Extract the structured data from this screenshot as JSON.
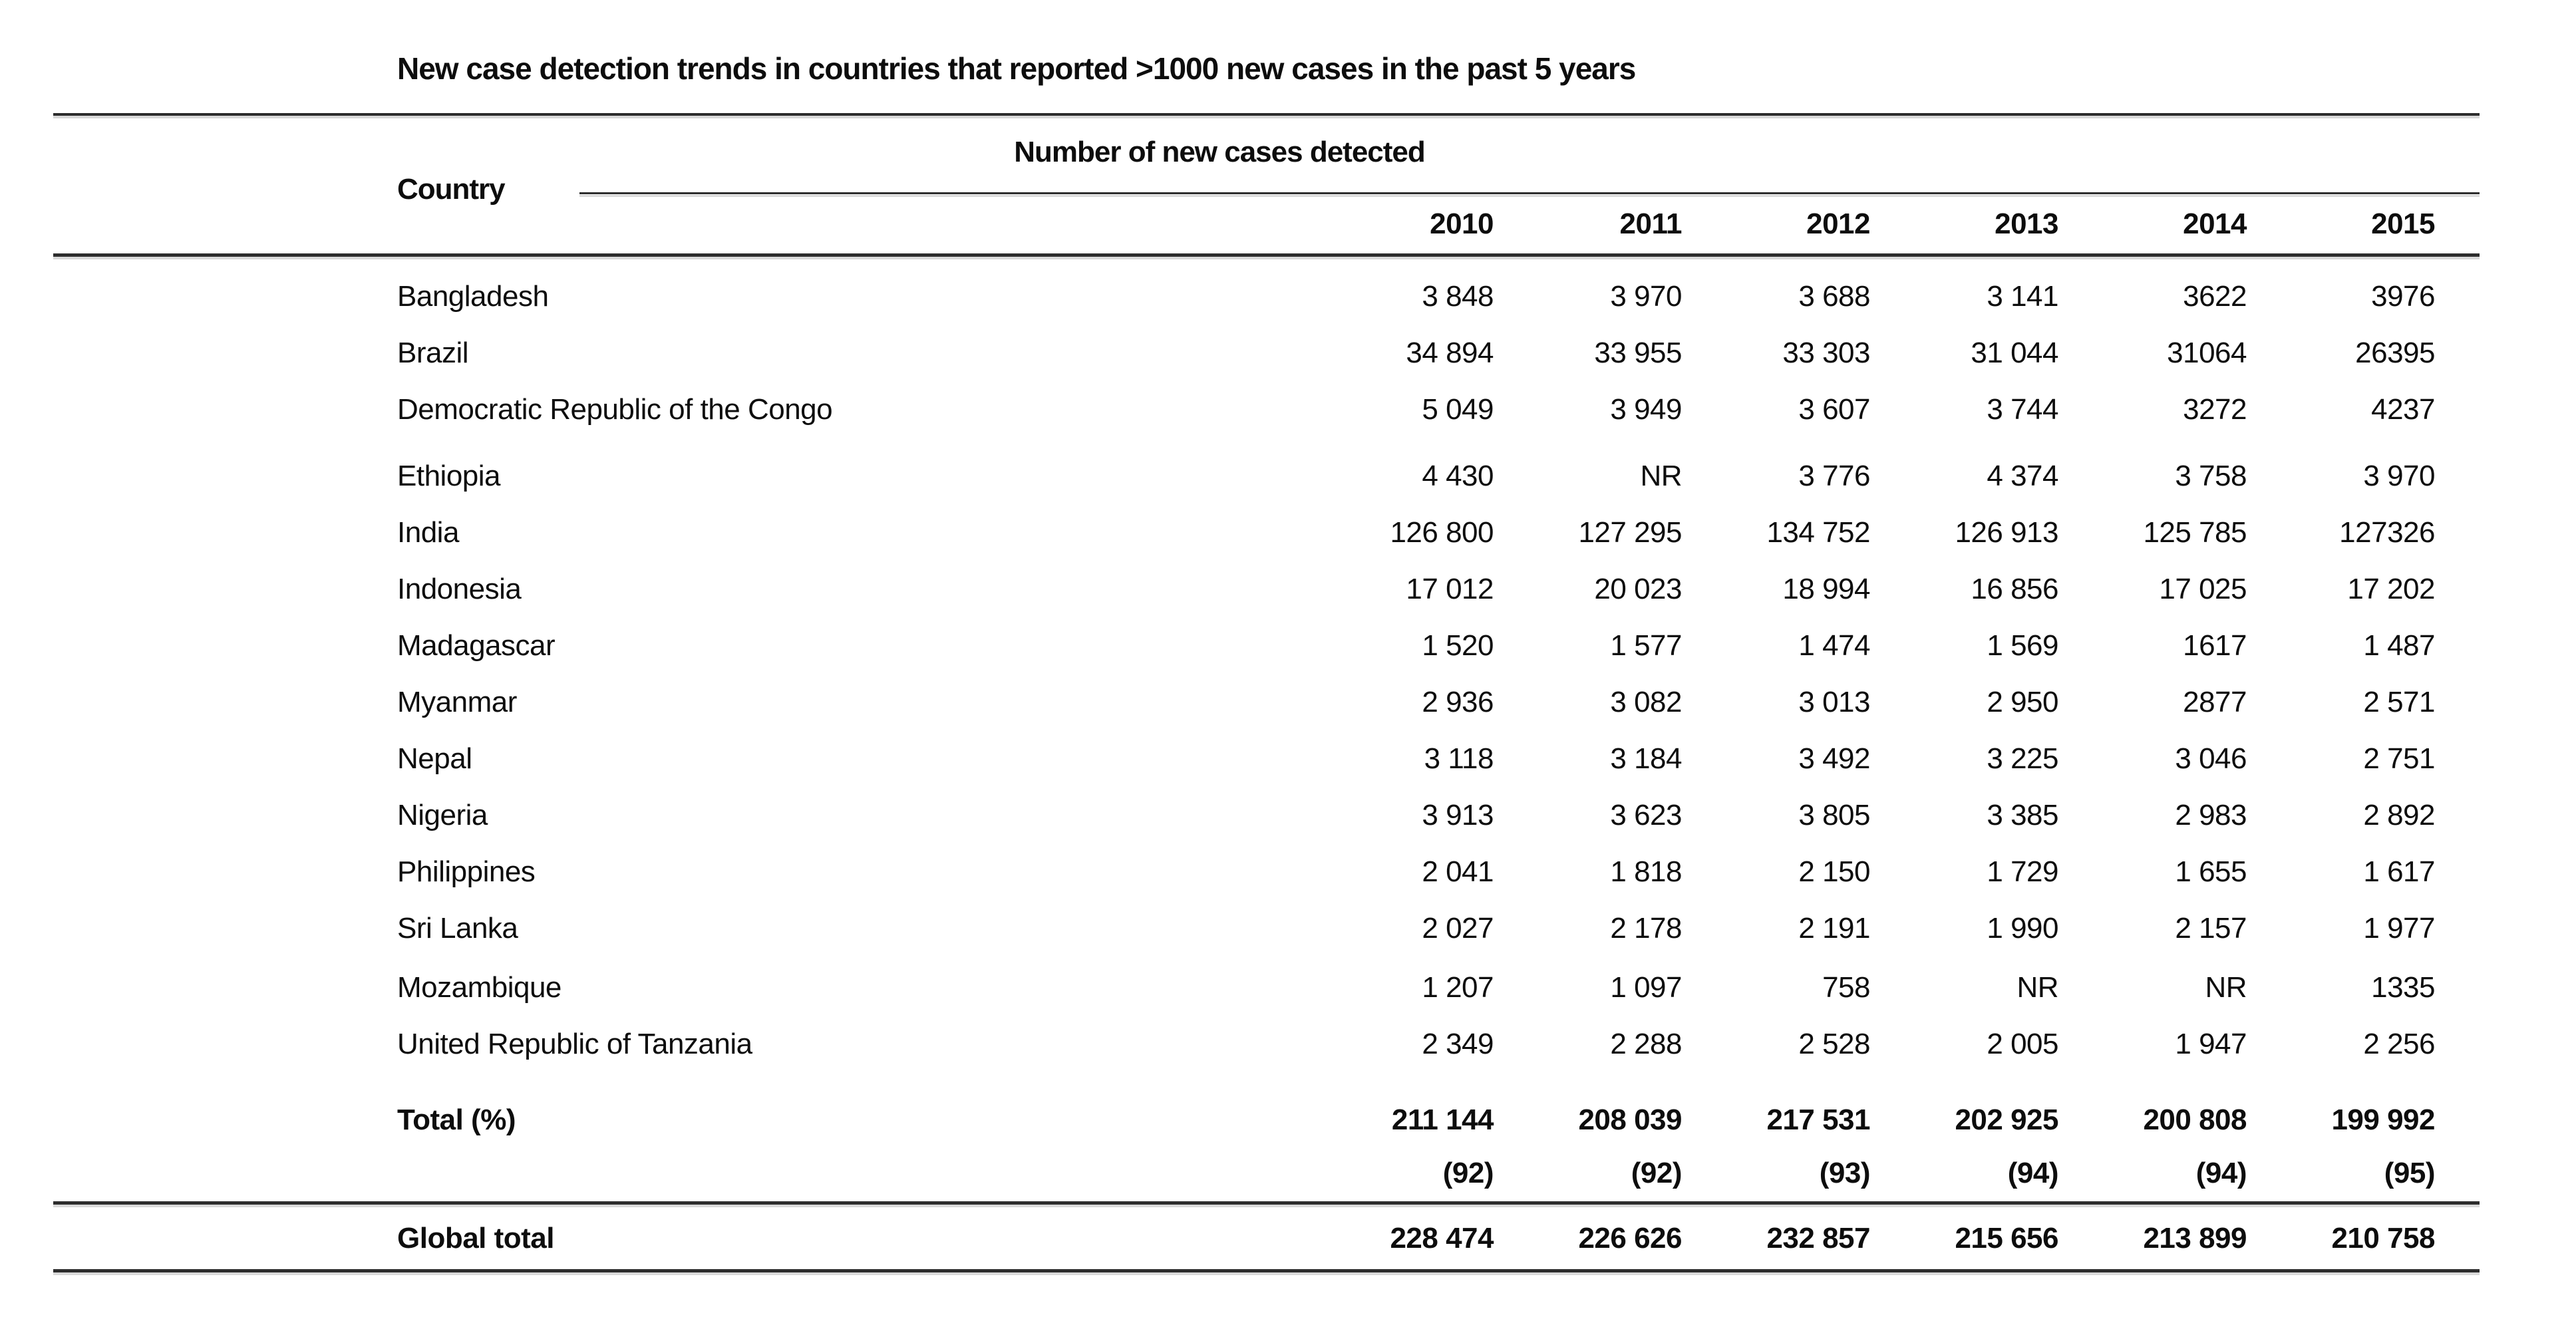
{
  "chart_data": {
    "type": "table",
    "title": "New case detection trends in countries that reported >1000 new cases in the past 5 years",
    "country_header": "Country",
    "group_header": "Number of new cases detected",
    "years": [
      "2010",
      "2011",
      "2012",
      "2013",
      "2014",
      "2015"
    ],
    "rows": [
      {
        "country": "Bangladesh",
        "values": [
          "3 848",
          "3 970",
          "3 688",
          "3 141",
          "3622",
          "3976"
        ]
      },
      {
        "country": "Brazil",
        "values": [
          "34 894",
          "33 955",
          "33 303",
          "31 044",
          "31064",
          "26395"
        ]
      },
      {
        "country": "Democratic Republic of the Congo",
        "values": [
          "5 049",
          "3 949",
          "3 607",
          "3 744",
          "3272",
          "4237"
        ]
      },
      {
        "country": "Ethiopia",
        "values": [
          "4 430",
          "NR",
          "3 776",
          "4 374",
          "3 758",
          "3 970"
        ]
      },
      {
        "country": "India",
        "values": [
          "126 800",
          "127 295",
          "134 752",
          "126 913",
          "125 785",
          "127326"
        ]
      },
      {
        "country": "Indonesia",
        "values": [
          "17 012",
          "20 023",
          "18 994",
          "16 856",
          "17 025",
          "17 202"
        ]
      },
      {
        "country": "Madagascar",
        "values": [
          "1 520",
          "1 577",
          "1 474",
          "1 569",
          "1617",
          "1 487"
        ]
      },
      {
        "country": "Myanmar",
        "values": [
          "2 936",
          "3 082",
          "3 013",
          "2 950",
          "2877",
          "2 571"
        ]
      },
      {
        "country": "Nepal",
        "values": [
          "3 118",
          "3 184",
          "3 492",
          "3 225",
          "3 046",
          "2 751"
        ]
      },
      {
        "country": "Nigeria",
        "values": [
          "3 913",
          "3 623",
          "3 805",
          "3 385",
          "2 983",
          "2 892"
        ]
      },
      {
        "country": "Philippines",
        "values": [
          "2 041",
          "1 818",
          "2 150",
          "1 729",
          "1 655",
          "1 617"
        ]
      },
      {
        "country": "Sri Lanka",
        "values": [
          "2 027",
          "2 178",
          "2 191",
          "1 990",
          "2 157",
          "1 977"
        ]
      },
      {
        "country": "Mozambique",
        "values": [
          "1 207",
          "1 097",
          "758",
          "NR",
          "NR",
          "1335"
        ]
      },
      {
        "country": "United Republic of Tanzania",
        "values": [
          "2 349",
          "2 288",
          "2 528",
          "2 005",
          "1 947",
          "2 256"
        ]
      }
    ],
    "total_row": {
      "label": "Total (%)",
      "values": [
        "211 144",
        "208 039",
        "217 531",
        "202 925",
        "200 808",
        "199 992"
      ]
    },
    "percent_row": {
      "label": "",
      "values": [
        "(92)",
        "(92)",
        "(93)",
        "(94)",
        "(94)",
        "(95)"
      ]
    },
    "global_row": {
      "label": "Global total",
      "values": [
        "228 474",
        "226 626",
        "232 857",
        "215 656",
        "213 899",
        "210 758"
      ]
    }
  }
}
